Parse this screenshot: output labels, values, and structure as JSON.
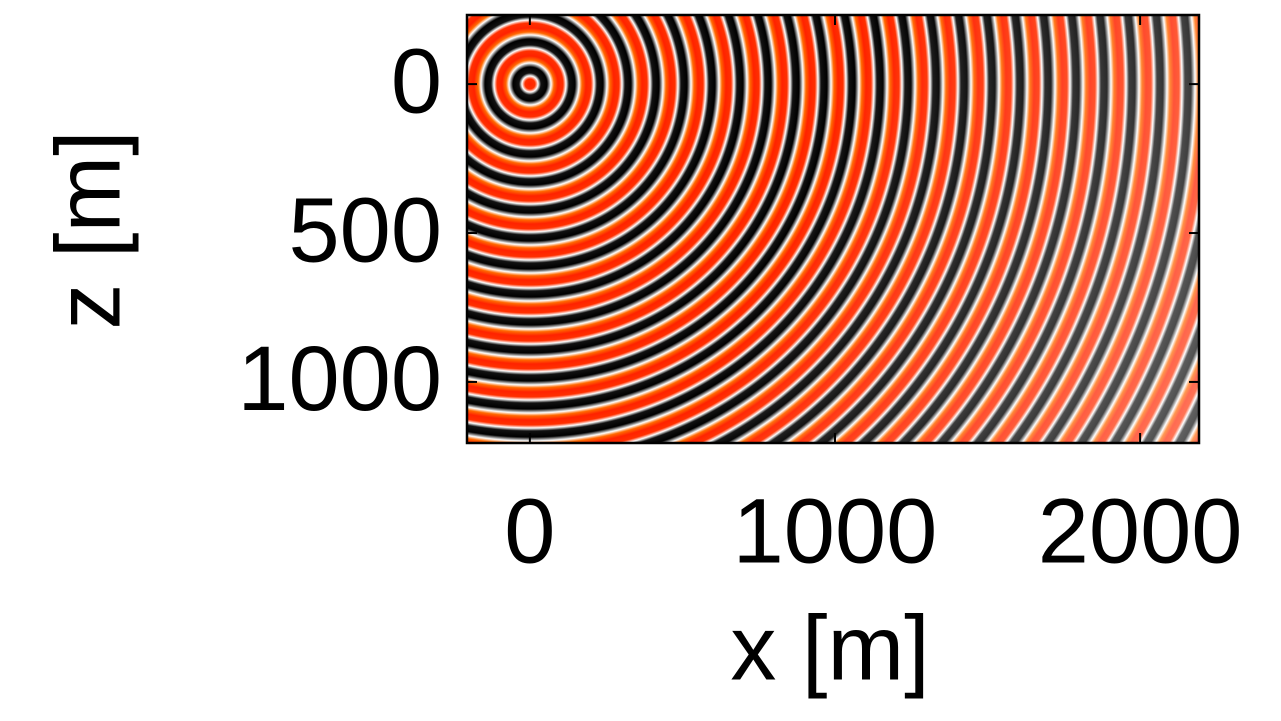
{
  "chart_data": {
    "type": "image",
    "xlabel": "x [m]",
    "ylabel": "z [m]",
    "xlim": [
      -206,
      2193
    ],
    "ylim": [
      -232,
      1205
    ],
    "y_reversed": true,
    "xticks": [
      0,
      1000,
      2000
    ],
    "yticks": [
      0,
      500,
      1000
    ]
  }
}
